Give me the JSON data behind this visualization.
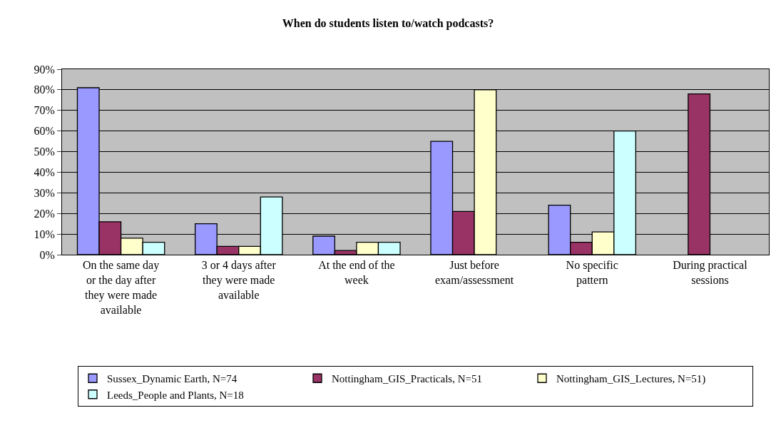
{
  "chart_data": {
    "type": "bar",
    "title": "When do students listen to/watch podcasts?",
    "categories": [
      "On the same day or the day after they were made available",
      "3 or 4 days after they were made available",
      "At the end of the week",
      "Just before exam/assessment",
      "No specific pattern",
      "During practical sessions"
    ],
    "series": [
      {
        "name": "Sussex_Dynamic Earth, N=74",
        "color": "#9999ff",
        "values": [
          81,
          15,
          9,
          55,
          24,
          null
        ]
      },
      {
        "name": "Nottingham_GIS_Practicals, N=51",
        "color": "#993366",
        "values": [
          16,
          4,
          2,
          21,
          6,
          78
        ]
      },
      {
        "name": "Nottingham_GIS_Lectures, N=51)",
        "color": "#ffffcc",
        "values": [
          8,
          4,
          6,
          80,
          11,
          null
        ]
      },
      {
        "name": "Leeds_People and Plants, N=18",
        "color": "#ccffff",
        "values": [
          6,
          28,
          6,
          null,
          60,
          null
        ]
      }
    ],
    "ylim": [
      0,
      90
    ],
    "yticks": [
      {
        "value": 0,
        "label": "0%"
      },
      {
        "value": 10,
        "label": "10%"
      },
      {
        "value": 20,
        "label": "20%"
      },
      {
        "value": 30,
        "label": "30%"
      },
      {
        "value": 40,
        "label": "40%"
      },
      {
        "value": 50,
        "label": "50%"
      },
      {
        "value": 60,
        "label": "60%"
      },
      {
        "value": 70,
        "label": "70%"
      },
      {
        "value": 80,
        "label": "80%"
      },
      {
        "value": 90,
        "label": "90%"
      }
    ],
    "grid": "y",
    "legend": "bottom"
  }
}
